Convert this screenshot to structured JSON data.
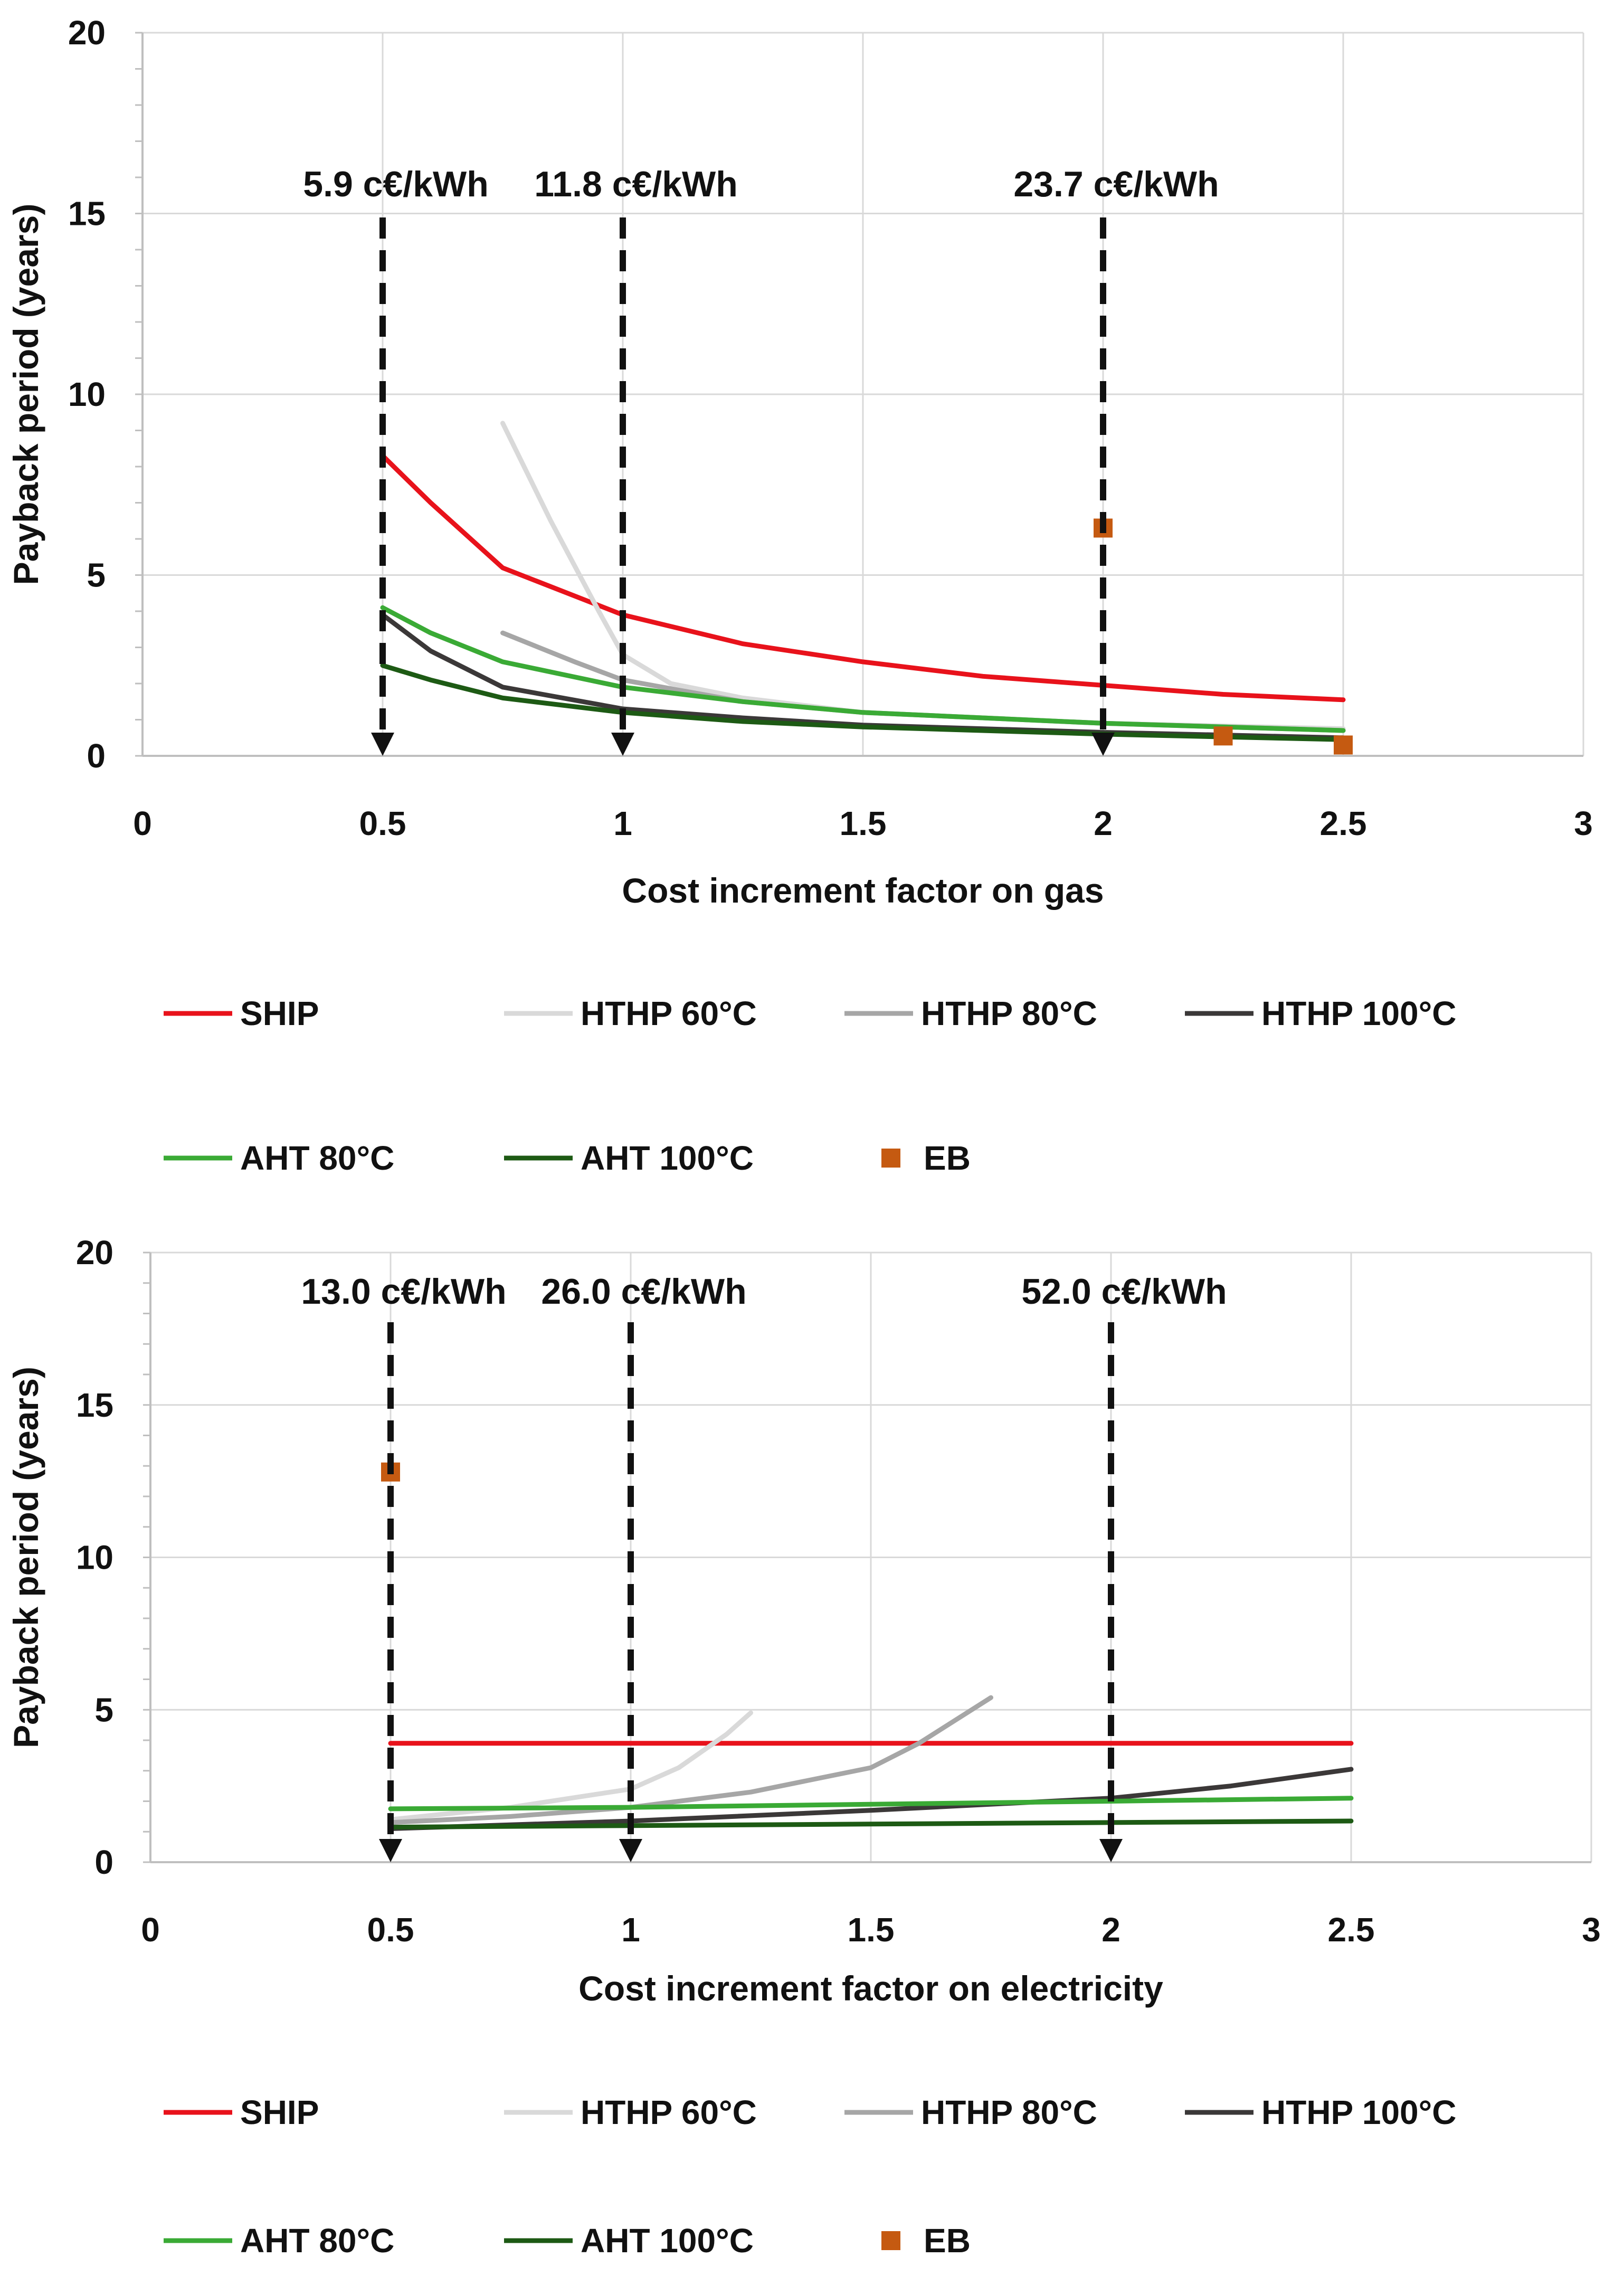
{
  "chart_data": [
    {
      "type": "line",
      "xlabel": "Cost increment factor on gas",
      "ylabel": "Payback period  (years)",
      "xlim": [
        0,
        3
      ],
      "ylim": [
        0,
        20
      ],
      "x_ticks": [
        "0",
        "0.5",
        "1",
        "1.5",
        "2",
        "2.5",
        "3"
      ],
      "y_ticks": [
        "0",
        "5",
        "10",
        "15",
        "20"
      ],
      "grid": true,
      "legend_position": "bottom",
      "annotations": [
        {
          "x": 0.5,
          "label": "5.9 c€/kWh"
        },
        {
          "x": 1,
          "label": "11.8 c€/kWh"
        },
        {
          "x": 2,
          "label": "23.7 c€/kWh"
        }
      ],
      "series": [
        {
          "name": "SHIP",
          "color": "#e8121b",
          "marker": "line",
          "points": [
            [
              0.5,
              8.3
            ],
            [
              0.6,
              7.0
            ],
            [
              0.75,
              5.2
            ],
            [
              1,
              3.9
            ],
            [
              1.25,
              3.1
            ],
            [
              1.5,
              2.6
            ],
            [
              1.75,
              2.2
            ],
            [
              2,
              1.95
            ],
            [
              2.25,
              1.7
            ],
            [
              2.5,
              1.55
            ]
          ]
        },
        {
          "name": "HTHP 60°C",
          "color": "#d9d9d9",
          "marker": "line",
          "points": [
            [
              0.75,
              9.2
            ],
            [
              0.85,
              6.5
            ],
            [
              0.95,
              4.0
            ],
            [
              1,
              2.8
            ],
            [
              1.1,
              2.0
            ],
            [
              1.25,
              1.6
            ],
            [
              1.5,
              1.2
            ],
            [
              2,
              0.9
            ],
            [
              2.5,
              0.75
            ]
          ]
        },
        {
          "name": "HTHP 80°C",
          "color": "#a6a6a6",
          "marker": "line",
          "points": [
            [
              0.75,
              3.4
            ],
            [
              0.9,
              2.6
            ],
            [
              1,
              2.1
            ],
            [
              1.25,
              1.5
            ],
            [
              1.5,
              1.2
            ],
            [
              2,
              0.9
            ],
            [
              2.5,
              0.7
            ]
          ]
        },
        {
          "name": "HTHP 100°C",
          "color": "#3b3838",
          "marker": "line",
          "points": [
            [
              0.5,
              3.9
            ],
            [
              0.6,
              2.9
            ],
            [
              0.75,
              1.9
            ],
            [
              1,
              1.3
            ],
            [
              1.25,
              1.05
            ],
            [
              1.5,
              0.85
            ],
            [
              2,
              0.65
            ],
            [
              2.5,
              0.5
            ]
          ]
        },
        {
          "name": "AHT 80°C",
          "color": "#3aaa35",
          "marker": "line",
          "points": [
            [
              0.5,
              4.1
            ],
            [
              0.6,
              3.4
            ],
            [
              0.75,
              2.6
            ],
            [
              1,
              1.9
            ],
            [
              1.25,
              1.5
            ],
            [
              1.5,
              1.2
            ],
            [
              2,
              0.9
            ],
            [
              2.5,
              0.7
            ]
          ]
        },
        {
          "name": "AHT 100°C",
          "color": "#1d5a14",
          "marker": "line",
          "points": [
            [
              0.5,
              2.5
            ],
            [
              0.6,
              2.1
            ],
            [
              0.75,
              1.6
            ],
            [
              1,
              1.2
            ],
            [
              1.25,
              0.95
            ],
            [
              1.5,
              0.8
            ],
            [
              2,
              0.6
            ],
            [
              2.5,
              0.45
            ]
          ]
        },
        {
          "name": "EB",
          "color": "#c55a11",
          "marker": "square",
          "points": [
            [
              2,
              6.3
            ],
            [
              2.25,
              0.55
            ],
            [
              2.5,
              0.3
            ]
          ]
        }
      ]
    },
    {
      "type": "line",
      "xlabel": "Cost increment factor on electricity",
      "ylabel": "Payback period  (years)",
      "xlim": [
        0,
        3
      ],
      "ylim": [
        0,
        20
      ],
      "x_ticks": [
        "0",
        "0.5",
        "1",
        "1.5",
        "2",
        "2.5",
        "3"
      ],
      "y_ticks": [
        "0",
        "5",
        "10",
        "15",
        "20"
      ],
      "grid": true,
      "legend_position": "bottom",
      "annotations": [
        {
          "x": 0.5,
          "label": "13.0 c€/kWh"
        },
        {
          "x": 1,
          "label": "26.0 c€/kWh"
        },
        {
          "x": 2,
          "label": "52.0 c€/kWh"
        }
      ],
      "series": [
        {
          "name": "SHIP",
          "color": "#e8121b",
          "marker": "line",
          "points": [
            [
              0.5,
              3.9
            ],
            [
              2.5,
              3.9
            ]
          ]
        },
        {
          "name": "HTHP 60°C",
          "color": "#d9d9d9",
          "marker": "line",
          "points": [
            [
              0.5,
              1.4
            ],
            [
              0.75,
              1.8
            ],
            [
              1,
              2.4
            ],
            [
              1.1,
              3.1
            ],
            [
              1.2,
              4.2
            ],
            [
              1.25,
              4.9
            ]
          ]
        },
        {
          "name": "HTHP 80°C",
          "color": "#a6a6a6",
          "marker": "line",
          "points": [
            [
              0.5,
              1.3
            ],
            [
              0.75,
              1.5
            ],
            [
              1,
              1.8
            ],
            [
              1.25,
              2.3
            ],
            [
              1.5,
              3.1
            ],
            [
              1.6,
              3.9
            ],
            [
              1.75,
              5.4
            ]
          ]
        },
        {
          "name": "HTHP 100°C",
          "color": "#3b3838",
          "marker": "line",
          "points": [
            [
              0.5,
              1.1
            ],
            [
              1,
              1.35
            ],
            [
              1.5,
              1.7
            ],
            [
              2,
              2.1
            ],
            [
              2.25,
              2.5
            ],
            [
              2.5,
              3.05
            ]
          ]
        },
        {
          "name": "AHT 80°C",
          "color": "#3aaa35",
          "marker": "line",
          "points": [
            [
              0.5,
              1.75
            ],
            [
              1,
              1.8
            ],
            [
              1.5,
              1.9
            ],
            [
              2,
              2.0
            ],
            [
              2.5,
              2.1
            ]
          ]
        },
        {
          "name": "AHT 100°C",
          "color": "#1d5a14",
          "marker": "line",
          "points": [
            [
              0.5,
              1.15
            ],
            [
              1,
              1.2
            ],
            [
              1.5,
              1.25
            ],
            [
              2,
              1.3
            ],
            [
              2.5,
              1.35
            ]
          ]
        },
        {
          "name": "EB",
          "color": "#c55a11",
          "marker": "square",
          "points": [
            [
              0.5,
              12.8
            ]
          ]
        }
      ]
    }
  ]
}
